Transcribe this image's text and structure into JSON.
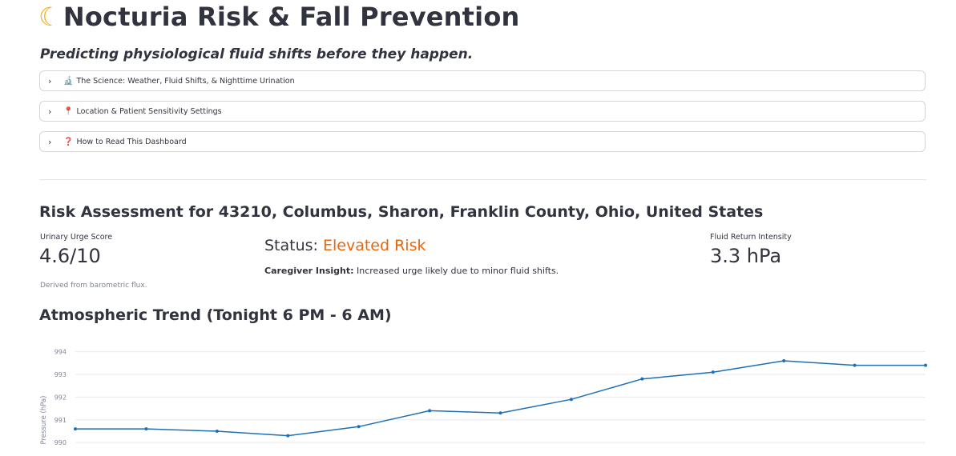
{
  "app": {
    "title_icon": "crescent-moon-icon",
    "title": "Nocturia Risk & Fall Prevention",
    "subtitle": "Predicting physiological fluid shifts before they happen."
  },
  "expanders": [
    {
      "icon": "microscope-icon",
      "glyph": "🔬",
      "label": "The Science: Weather, Fluid Shifts, & Nighttime Urination"
    },
    {
      "icon": "pin-icon",
      "glyph": "📍",
      "label": "Location & Patient Sensitivity Settings"
    },
    {
      "icon": "question-icon",
      "glyph": "❓",
      "label": "How to Read This Dashboard"
    }
  ],
  "assessment": {
    "heading": "Risk Assessment for 43210, Columbus, Sharon, Franklin County, Ohio, United States",
    "urge": {
      "label": "Urinary Urge Score",
      "value": "4.6/10",
      "help": "Derived from barometric flux."
    },
    "status": {
      "label": "Status:",
      "value": "Elevated Risk",
      "color": "#e8660c"
    },
    "insight": {
      "label": "Caregiver Insight:",
      "text": "Increased urge likely due to minor fluid shifts."
    },
    "fluid": {
      "label": "Fluid Return Intensity",
      "value": "3.3 hPa"
    }
  },
  "trend": {
    "heading": "Atmospheric Trend (Tonight 6 PM - 6 AM)"
  },
  "chart_data": {
    "type": "line",
    "ylabel": "Pressure (hPa)",
    "yticks": [
      990,
      991,
      992,
      993,
      994
    ],
    "ylim": [
      989.9,
      994.55
    ],
    "grid": true,
    "color": "#1f6fb5",
    "x": [
      0,
      1,
      2,
      3,
      4,
      5,
      6,
      7,
      8,
      9,
      10,
      11,
      12
    ],
    "values": [
      990.6,
      990.6,
      990.5,
      990.3,
      990.7,
      991.4,
      991.3,
      991.9,
      992.8,
      993.1,
      993.6,
      993.4,
      993.4
    ]
  }
}
